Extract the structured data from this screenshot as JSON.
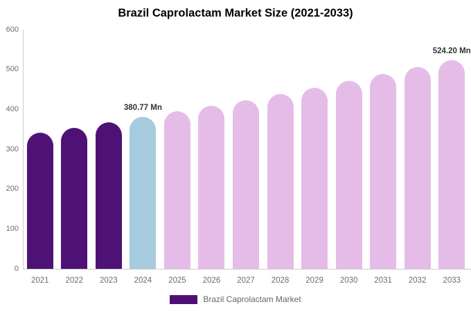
{
  "title": "Brazil Caprolactam Market Size (2021-2033)",
  "chart_data": {
    "type": "bar",
    "title": "Brazil Caprolactam Market Size (2021-2033)",
    "categories": [
      "2021",
      "2022",
      "2023",
      "2024",
      "2025",
      "2026",
      "2027",
      "2028",
      "2029",
      "2030",
      "2031",
      "2032",
      "2033"
    ],
    "values": [
      342.2,
      354.6,
      367.5,
      380.77,
      394.6,
      408.9,
      423.7,
      439.0,
      454.9,
      471.4,
      488.4,
      506.1,
      524.2
    ],
    "point_labels": [
      "",
      "",
      "",
      "380.77 Mn",
      "",
      "",
      "",
      "",
      "",
      "",
      "",
      "",
      "524.20 Mn"
    ],
    "bar_colors": [
      "#4e1277",
      "#4e1277",
      "#4e1277",
      "#a6cbdf",
      "#e5bce8",
      "#e5bce8",
      "#e5bce8",
      "#e5bce8",
      "#e5bce8",
      "#e5bce8",
      "#e5bce8",
      "#e5bce8",
      "#e5bce8"
    ],
    "xlabel": "",
    "ylabel": "",
    "ylim": [
      0,
      600
    ],
    "yticks": [
      600,
      500,
      400,
      300,
      200,
      100,
      0
    ],
    "grid": false,
    "legend": {
      "position": "bottom",
      "items": [
        {
          "label": "Brazil Caprolactam Market",
          "color": "#4e1277"
        }
      ]
    }
  },
  "colors": {
    "historical_bar": "#4e1277",
    "base_year_bar": "#a6cbdf",
    "forecast_bar": "#e5bce8",
    "axis_line": "#cccccc",
    "axis_text": "#6b6b6b",
    "data_label": "#333333",
    "title_text": "#000000",
    "background": "#ffffff"
  }
}
